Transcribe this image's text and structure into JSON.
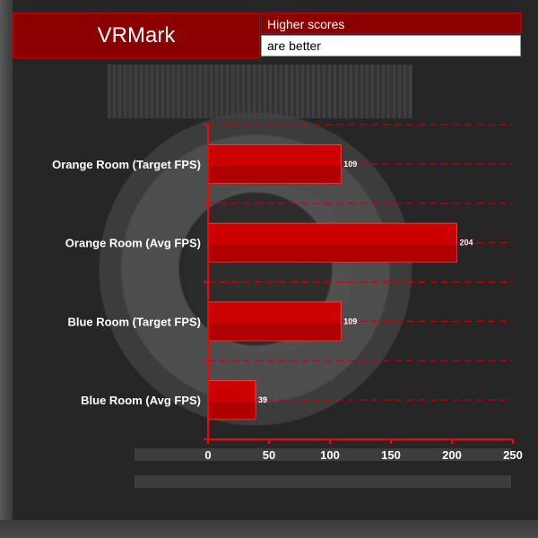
{
  "header": {
    "title": "VRMark",
    "note_line1": "Higher scores",
    "note_line2": "are better"
  },
  "colors": {
    "bar": "#cc0000",
    "bar_dark": "#8b0000",
    "axis": "#ff0000",
    "grid": "#cc0000",
    "text": "#ffffff"
  },
  "chart_data": {
    "type": "bar",
    "orientation": "horizontal",
    "title": "VRMark",
    "categories": [
      "Orange Room (Target FPS)",
      "Orange Room (Avg FPS)",
      "Blue Room (Target FPS)",
      "Blue Room (Avg FPS)"
    ],
    "values": [
      109,
      204,
      109,
      39
    ],
    "xlim": [
      0,
      250
    ],
    "xticks": [
      0,
      50,
      100,
      150,
      200,
      250
    ],
    "xlabel": "",
    "ylabel": "",
    "grid": true,
    "data_labels": true
  }
}
